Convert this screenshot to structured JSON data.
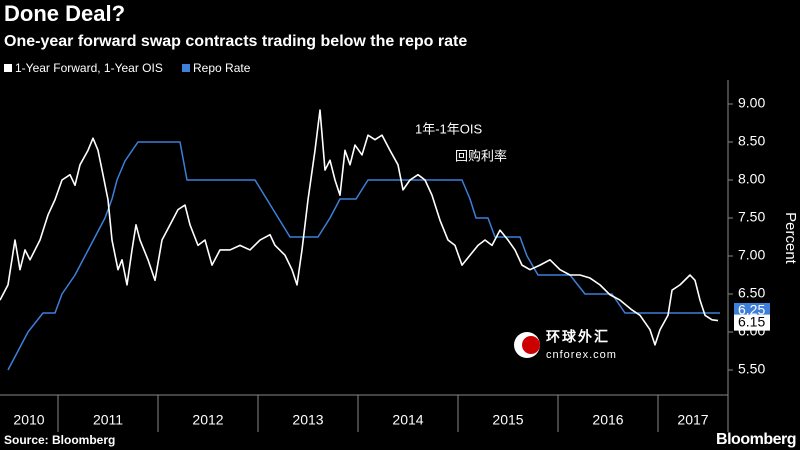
{
  "chart_data": {
    "type": "line",
    "title": "Done Deal?",
    "subtitle": "One-year forward swap contracts trading below the repo rate",
    "y_label": "Percent",
    "source": "Source: Bloomberg",
    "brand": "Bloomberg",
    "annotations": [
      "1年-1年OIS",
      "回购利率"
    ],
    "watermark": [
      "环球外汇",
      "cnforex.com"
    ],
    "xlim": [
      2010.42,
      2017.7
    ],
    "xticks": [
      2010,
      2011,
      2012,
      2013,
      2014,
      2015,
      2016,
      2017
    ],
    "ylim": [
      5.25,
      9.25
    ],
    "yticks": [
      {
        "value": 5.5,
        "label": "5.50"
      },
      {
        "value": 6,
        "label": "6.00"
      },
      {
        "value": 6.5,
        "label": "6.50"
      },
      {
        "value": 7,
        "label": "7.00"
      },
      {
        "value": 7.5,
        "label": "7.50"
      },
      {
        "value": 8,
        "label": "8.00"
      },
      {
        "value": 8.5,
        "label": "8.50"
      },
      {
        "value": 9,
        "label": "9.00"
      }
    ],
    "grid": false,
    "series": [
      {
        "name": "Repo Rate",
        "color": "#3d7fd9",
        "x": [
          2010.5,
          2010.6,
          2010.7,
          2010.85,
          2010.97,
          2011.04,
          2011.17,
          2011.27,
          2011.37,
          2011.47,
          2011.54,
          2011.59,
          2011.67,
          2011.8,
          2012.22,
          2012.29,
          2012.97,
          2013.32,
          2013.6,
          2013.72,
          2013.82,
          2013.98,
          2014.1,
          2015.04,
          2015.12,
          2015.18,
          2015.3,
          2015.37,
          2015.62,
          2015.69,
          2015.8,
          2016.12,
          2016.27,
          2016.54,
          2016.67,
          2017.62
        ],
        "values": [
          5.5,
          5.75,
          6.0,
          6.25,
          6.25,
          6.5,
          6.75,
          7.0,
          7.25,
          7.5,
          7.75,
          8.0,
          8.25,
          8.5,
          8.5,
          8.0,
          8.0,
          7.25,
          7.25,
          7.5,
          7.75,
          7.75,
          8.0,
          8.0,
          7.75,
          7.5,
          7.5,
          7.25,
          7.25,
          7.0,
          6.75,
          6.75,
          6.5,
          6.5,
          6.25,
          6.25
        ]
      },
      {
        "name": "1-Year Forward, 1-Year OIS",
        "color": "#ffffff",
        "x": [
          2010.42,
          2010.5,
          2010.57,
          2010.62,
          2010.67,
          2010.72,
          2010.82,
          2010.9,
          2010.97,
          2011.04,
          2011.12,
          2011.17,
          2011.22,
          2011.3,
          2011.35,
          2011.4,
          2011.45,
          2011.5,
          2011.54,
          2011.6,
          2011.64,
          2011.69,
          2011.74,
          2011.78,
          2011.82,
          2011.9,
          2011.97,
          2012.04,
          2012.12,
          2012.2,
          2012.27,
          2012.32,
          2012.4,
          2012.47,
          2012.54,
          2012.62,
          2012.72,
          2012.82,
          2012.92,
          2013.02,
          2013.12,
          2013.17,
          2013.27,
          2013.34,
          2013.39,
          2013.44,
          2013.5,
          2013.57,
          2013.62,
          2013.67,
          2013.72,
          2013.77,
          2013.82,
          2013.87,
          2013.92,
          2013.97,
          2014.04,
          2014.1,
          2014.17,
          2014.24,
          2014.32,
          2014.4,
          2014.45,
          2014.52,
          2014.6,
          2014.67,
          2014.74,
          2014.82,
          2014.9,
          2014.97,
          2015.04,
          2015.12,
          2015.2,
          2015.27,
          2015.34,
          2015.42,
          2015.5,
          2015.57,
          2015.64,
          2015.72,
          2015.82,
          2015.92,
          2016.02,
          2016.12,
          2016.22,
          2016.32,
          2016.42,
          2016.52,
          2016.62,
          2016.74,
          2016.82,
          2016.92,
          2016.97,
          2017.02,
          2017.1,
          2017.14,
          2017.22,
          2017.32,
          2017.37,
          2017.42,
          2017.47,
          2017.54,
          2017.6
        ],
        "values": [
          6.42,
          6.62,
          7.21,
          6.82,
          7.08,
          6.95,
          7.21,
          7.54,
          7.74,
          8.0,
          8.07,
          7.93,
          8.2,
          8.39,
          8.55,
          8.39,
          8.07,
          7.74,
          7.21,
          6.82,
          6.95,
          6.62,
          7.08,
          7.41,
          7.21,
          6.95,
          6.68,
          7.21,
          7.41,
          7.61,
          7.67,
          7.41,
          7.14,
          7.21,
          6.88,
          7.08,
          7.08,
          7.14,
          7.08,
          7.21,
          7.28,
          7.14,
          7.01,
          6.82,
          6.62,
          7.08,
          7.74,
          8.39,
          8.92,
          8.13,
          8.26,
          8.0,
          7.8,
          8.39,
          8.2,
          8.46,
          8.33,
          8.59,
          8.53,
          8.59,
          8.39,
          8.2,
          7.87,
          8.0,
          8.07,
          8.0,
          7.8,
          7.47,
          7.21,
          7.14,
          6.88,
          7.01,
          7.14,
          7.21,
          7.14,
          7.34,
          7.21,
          7.08,
          6.88,
          6.82,
          6.88,
          6.95,
          6.82,
          6.75,
          6.75,
          6.71,
          6.62,
          6.49,
          6.42,
          6.29,
          6.22,
          6.03,
          5.83,
          6.03,
          6.22,
          6.55,
          6.62,
          6.75,
          6.68,
          6.42,
          6.22,
          6.16,
          6.15
        ]
      }
    ]
  }
}
